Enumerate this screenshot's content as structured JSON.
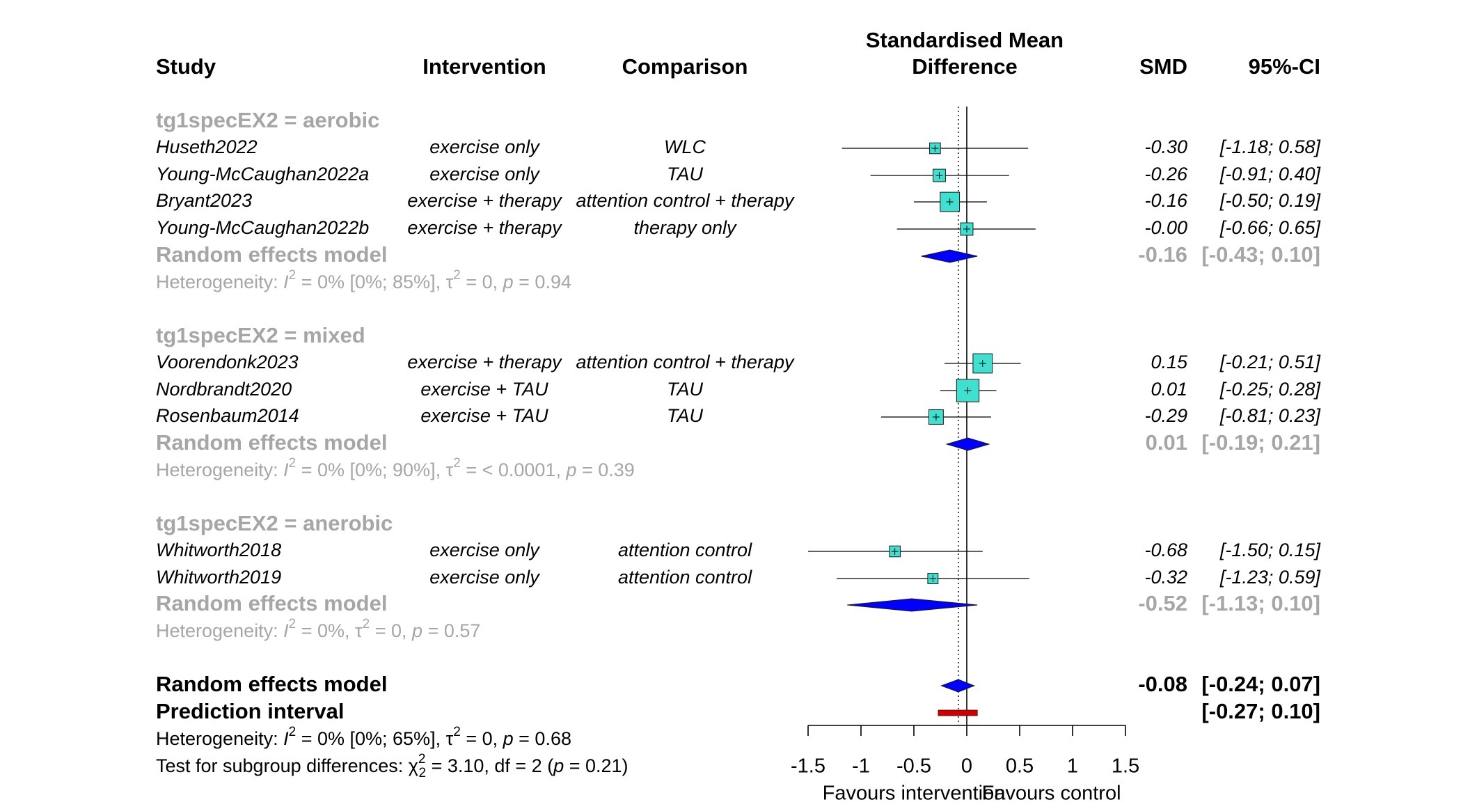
{
  "chart_data": {
    "type": "forest",
    "columns": {
      "study": "Study",
      "intervention": "Intervention",
      "comparison": "Comparison",
      "effect_l1": "Standardised Mean",
      "effect_l2": "Difference",
      "smd": "SMD",
      "ci": "95%-CI"
    },
    "groups": [
      {
        "label": "tg1specEX2 = aerobic",
        "studies": [
          {
            "name": "Huseth2022",
            "intervention": "exercise only",
            "comparison": "WLC",
            "smd": -0.3,
            "lower": -1.18,
            "upper": 0.58,
            "weight": 1,
            "smd_text": "-0.30",
            "ci_text": "[-1.18; 0.58]"
          },
          {
            "name": "Young-McCaughan2022a",
            "intervention": "exercise only",
            "comparison": "TAU",
            "smd": -0.26,
            "lower": -0.91,
            "upper": 0.4,
            "weight": 1.3,
            "smd_text": "-0.26",
            "ci_text": "[-0.91; 0.40]"
          },
          {
            "name": "Bryant2023",
            "intervention": "exercise + therapy",
            "comparison": "attention control + therapy",
            "smd": -0.16,
            "lower": -0.5,
            "upper": 0.19,
            "weight": 2.6,
            "smd_text": "-0.16",
            "ci_text": "[-0.50; 0.19]"
          },
          {
            "name": "Young-McCaughan2022b",
            "intervention": "exercise + therapy",
            "comparison": "therapy only",
            "smd": -0.0,
            "lower": -0.66,
            "upper": 0.65,
            "weight": 1.3,
            "smd_text": "-0.00",
            "ci_text": "[-0.66; 0.65]"
          }
        ],
        "model": {
          "label": "Random effects model",
          "smd": -0.16,
          "lower": -0.43,
          "upper": 0.1,
          "smd_text": "-0.16",
          "ci_text": "[-0.43; 0.10]"
        },
        "heterogeneity": {
          "prefix": "Heterogeneity: ",
          "I": "I",
          "i2": " = 0% [0%; 85%], ",
          "tau": "τ",
          "tau2": " = 0, ",
          "p": "p",
          "pval": " = 0.94"
        }
      },
      {
        "label": "tg1specEX2 = mixed",
        "studies": [
          {
            "name": "Voorendonk2023",
            "intervention": "exercise + therapy",
            "comparison": "attention control + therapy",
            "smd": 0.15,
            "lower": -0.21,
            "upper": 0.51,
            "weight": 2.6,
            "smd_text": "0.15",
            "ci_text": "[-0.21; 0.51]"
          },
          {
            "name": "Nordbrandt2020",
            "intervention": "exercise + TAU",
            "comparison": "TAU",
            "smd": 0.01,
            "lower": -0.25,
            "upper": 0.28,
            "weight": 3.2,
            "smd_text": "0.01",
            "ci_text": "[-0.25; 0.28]"
          },
          {
            "name": "Rosenbaum2014",
            "intervention": "exercise + TAU",
            "comparison": "TAU",
            "smd": -0.29,
            "lower": -0.81,
            "upper": 0.23,
            "weight": 1.7,
            "smd_text": "-0.29",
            "ci_text": "[-0.81; 0.23]"
          }
        ],
        "model": {
          "label": "Random effects model",
          "smd": 0.01,
          "lower": -0.19,
          "upper": 0.21,
          "smd_text": "0.01",
          "ci_text": "[-0.19; 0.21]"
        },
        "heterogeneity": {
          "prefix": "Heterogeneity: ",
          "I": "I",
          "i2": " = 0% [0%; 90%], ",
          "tau": "τ",
          "tau2": " = < 0.0001, ",
          "p": "p",
          "pval": " = 0.39"
        }
      },
      {
        "label": "tg1specEX2 = anerobic",
        "studies": [
          {
            "name": "Whitworth2018",
            "intervention": "exercise only",
            "comparison": "attention control",
            "smd": -0.68,
            "lower": -1.5,
            "upper": 0.15,
            "weight": 1,
            "smd_text": "-0.68",
            "ci_text": "[-1.50; 0.15]"
          },
          {
            "name": "Whitworth2019",
            "intervention": "exercise only",
            "comparison": "attention control",
            "smd": -0.32,
            "lower": -1.23,
            "upper": 0.59,
            "weight": 0.9,
            "smd_text": "-0.32",
            "ci_text": "[-1.23; 0.59]"
          }
        ],
        "model": {
          "label": "Random effects model",
          "smd": -0.52,
          "lower": -1.13,
          "upper": 0.1,
          "smd_text": "-0.52",
          "ci_text": "[-1.13; 0.10]"
        },
        "heterogeneity": {
          "prefix": "Heterogeneity: ",
          "I": "I",
          "i2": " = 0%, ",
          "tau": "τ",
          "tau2": " = 0, ",
          "p": "p",
          "pval": " = 0.57"
        }
      }
    ],
    "overall": {
      "label": "Random effects model",
      "smd": -0.08,
      "lower": -0.24,
      "upper": 0.07,
      "smd_text": "-0.08",
      "ci_text": "[-0.24; 0.07]"
    },
    "prediction": {
      "label": "Prediction interval",
      "lower": -0.27,
      "upper": 0.1,
      "ci_text": "[-0.27; 0.10]"
    },
    "overall_heterogeneity": {
      "prefix": "Heterogeneity: ",
      "I": "I",
      "i2": " = 0% [0%; 65%], ",
      "tau": "τ",
      "tau2": " = 0, ",
      "p": "p",
      "pval": " = 0.68"
    },
    "subgroup_test": {
      "prefix": "Test for subgroup differences: ",
      "chi": "χ",
      "sub": "2",
      "rest1": " = 3.10, df = 2 (",
      "p": "p",
      "rest2": " = 0.21)"
    },
    "x_axis": {
      "ticks": [
        -1.5,
        -1,
        -0.5,
        0,
        0.5,
        1,
        1.5
      ],
      "tick_labels": [
        "-1.5",
        "-1",
        "-0.5",
        "0",
        "0.5",
        "1",
        "1.5"
      ],
      "range": [
        -1.5,
        1.5
      ],
      "label_left": "Favours intervention",
      "label_right": "Favours control"
    },
    "reference_line": 0,
    "overall_dotted_line": -0.08,
    "colors": {
      "square_fill": "#40e0d0",
      "diamond_fill": "#0000ff",
      "prediction_fill": "#cc0000",
      "subgroup_text": "#a6a6a6"
    }
  }
}
